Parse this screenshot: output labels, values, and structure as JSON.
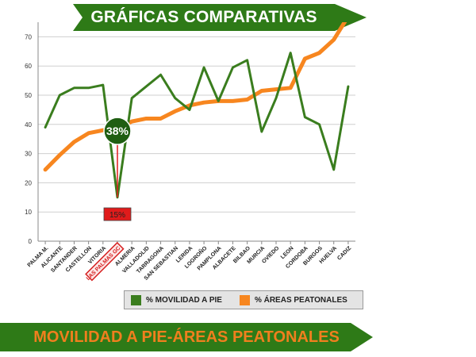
{
  "header": {
    "title": "GRÁFICAS COMPARATIVAS"
  },
  "footer": {
    "title": "MOVILIDAD A PIE-ÁREAS PEATONALES"
  },
  "colors": {
    "green": "#3a7d1e",
    "orange": "#f7861f",
    "dark_green": "#1f5e12",
    "red": "#e01b1b"
  },
  "chart_data": {
    "type": "line",
    "title": "",
    "xlabel": "",
    "ylabel": "",
    "ylim": [
      0,
      75
    ],
    "yticks": [
      0,
      10,
      20,
      30,
      40,
      50,
      60,
      70
    ],
    "grid": true,
    "legend": "bottom",
    "categories": [
      "PALMA M.",
      "ALICANTE",
      "SANTANDER",
      "CASTELLON",
      "VITORIA",
      "LAS PALMAS GC",
      "ALMERIA",
      "VALLADOLID",
      "TARRAGONA",
      "SAN SEBASTIAN",
      "LERIDA",
      "LOGROÑO",
      "PAMPLONA",
      "ALBACETE",
      "BILBAO",
      "MURCIA",
      "OVIEDO",
      "LEON",
      "CORDOBA",
      "BURGOS",
      "HUELVA",
      "CADIZ"
    ],
    "highlight_category": "LAS PALMAS GC",
    "series": [
      {
        "name": "% MOVILIDAD A PIE",
        "color": "#3a7d1e",
        "values": [
          39,
          50,
          52.5,
          52.5,
          53.5,
          15,
          49,
          53,
          57,
          49,
          45,
          59.5,
          48,
          59.5,
          62,
          37.5,
          49,
          64.5,
          42.5,
          40,
          24.5,
          53
        ]
      },
      {
        "name": "% ÁREAS PEATONALES",
        "color": "#f7861f",
        "values": [
          24.5,
          29.5,
          34,
          37,
          38,
          38.5,
          41,
          42,
          42,
          44.5,
          46.5,
          47.5,
          48,
          48,
          48.5,
          51.5,
          52,
          52.5,
          62.5,
          64.5,
          69,
          77
        ]
      }
    ],
    "annotations": [
      {
        "label": "38%",
        "category": "LAS PALMAS GC",
        "value": 38
      },
      {
        "label": "15%",
        "category": "LAS PALMAS GC",
        "value": 15
      }
    ]
  }
}
